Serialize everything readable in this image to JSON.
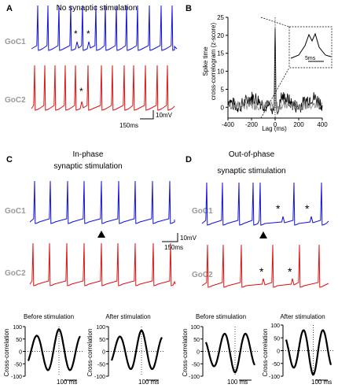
{
  "panels": {
    "A": {
      "label": "A",
      "title": "No synaptic stimulation",
      "cell1": "GoC1",
      "cell2": "GoC2",
      "star": "*",
      "scale_v": "10mV",
      "scale_t": "150ms",
      "colors": {
        "cell1": "#1010e0",
        "cell2": "#e01010"
      }
    },
    "B": {
      "label": "B",
      "ylabel_line1": "Spike time",
      "ylabel_line2": "cross-correlogram (z-score)",
      "xlabel": "Lag (ms)",
      "inset_scale": "5ms"
    },
    "C": {
      "label": "C",
      "title_line1": "In-phase",
      "title_line2": "synaptic stimulation",
      "cell1": "GoC1",
      "cell2": "GoC2",
      "before_label": "Before stimulation",
      "after_label": "After stimulation",
      "ylabel": "Cross-correlation",
      "time_scale": "100 ms"
    },
    "D": {
      "label": "D",
      "title_line1": "Out-of-phase",
      "title_line2": "synaptic stimulation",
      "cell1": "GoC1",
      "cell2": "GoC2",
      "before_label": "Before stimulation",
      "after_label": "After stimulation",
      "ylabel": "Cross-correlation",
      "time_scale": "100 ms"
    },
    "CD_scale": {
      "v": "10mV",
      "t": "150ms"
    }
  },
  "chart_data": [
    {
      "type": "line",
      "panel": "B",
      "xlabel": "Lag (ms)",
      "ylabel": "Spike time cross-correlogram (z-score)",
      "xlim": [
        -400,
        400
      ],
      "ylim": [
        -3,
        25
      ],
      "xticks": [
        -400,
        -200,
        0,
        200,
        400
      ],
      "yticks": [
        0,
        5,
        10,
        15,
        20,
        25
      ],
      "peak": {
        "x": 0,
        "y": 22
      },
      "x": [
        -400,
        -300,
        -200,
        -100,
        -50,
        0,
        50,
        100,
        200,
        300,
        400
      ],
      "y": [
        2,
        1,
        0,
        2,
        -1,
        22,
        -1,
        1,
        0,
        2,
        3
      ]
    },
    {
      "type": "line",
      "panel": "C-before",
      "title": "Before stimulation",
      "ylabel": "Cross-correlation",
      "ylim": [
        -100,
        100
      ],
      "yticks": [
        -100,
        -50,
        0,
        50,
        100
      ]
    },
    {
      "type": "line",
      "panel": "C-after",
      "title": "After stimulation",
      "ylabel": "Cross-correlation",
      "ylim": [
        -100,
        100
      ],
      "yticks": [
        -100,
        -50,
        0,
        50,
        100
      ]
    },
    {
      "type": "line",
      "panel": "D-before",
      "title": "Before stimulation",
      "ylabel": "Cross-correlation",
      "ylim": [
        -100,
        100
      ],
      "yticks": [
        -100,
        -50,
        0,
        50,
        100
      ]
    },
    {
      "type": "line",
      "panel": "D-after",
      "title": "After stimulation",
      "ylabel": "Cross-correlation",
      "ylim": [
        -100,
        100
      ],
      "yticks": [
        -100,
        -50,
        0,
        50,
        100
      ]
    }
  ]
}
